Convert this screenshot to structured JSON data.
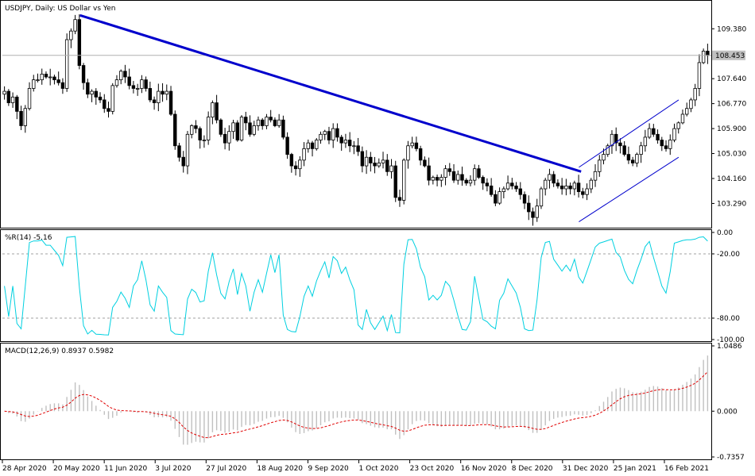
{
  "chart_data": [
    {
      "type": "candlestick",
      "title": "USDJPY, Daily:  US Dollar vs Yen",
      "yticks": [
        "109.380",
        "107.640",
        "106.770",
        "105.900",
        "105.030",
        "104.160",
        "103.290"
      ],
      "ylim": [
        102.5,
        110.3
      ],
      "current_price": 108.453,
      "current_price_label": "108.453",
      "x_labels": [
        "28 Apr 2020",
        "20 May 2020",
        "11 Jun 2020",
        "3 Jul 2020",
        "27 Jul 2020",
        "18 Aug 2020",
        "9 Sep 2020",
        "1 Oct 2020",
        "23 Oct 2020",
        "16 Nov 2020",
        "8 Dec 2020",
        "31 Dec 2020",
        "25 Jan 2021",
        "16 Feb 2021"
      ],
      "close_path": [
        107.2,
        106.8,
        107.0,
        106.5,
        106.0,
        106.6,
        107.3,
        107.6,
        107.6,
        107.8,
        107.7,
        107.7,
        107.6,
        107.5,
        107.3,
        109.0,
        109.3,
        109.7,
        108.1,
        107.5,
        107.1,
        107.2,
        107.0,
        106.9,
        106.6,
        106.5,
        107.4,
        107.6,
        107.9,
        107.7,
        107.4,
        107.3,
        107.3,
        107.6,
        107.3,
        106.9,
        106.8,
        107.2,
        107.1,
        107.2,
        106.4,
        105.3,
        104.9,
        104.6,
        105.7,
        106.0,
        105.9,
        105.5,
        105.5,
        106.3,
        106.8,
        106.2,
        105.7,
        105.4,
        105.8,
        106.1,
        105.5,
        106.3,
        106.1,
        105.7,
        106.0,
        106.2,
        106.0,
        106.3,
        106.2,
        106.0,
        106.2,
        105.6,
        105.0,
        104.6,
        104.5,
        104.8,
        105.2,
        105.4,
        105.2,
        105.5,
        105.7,
        105.8,
        105.5,
        105.9,
        105.6,
        105.4,
        105.5,
        105.3,
        105.3,
        105.1,
        104.6,
        104.9,
        104.7,
        104.6,
        104.7,
        104.8,
        104.4,
        104.6,
        103.5,
        103.4,
        104.8,
        105.3,
        105.4,
        105.2,
        104.8,
        104.6,
        104.1,
        104.2,
        104.1,
        104.2,
        104.5,
        104.4,
        104.1,
        104.3,
        104.1,
        104.0,
        104.1,
        104.5,
        104.2,
        104.0,
        103.9,
        103.6,
        103.3,
        103.7,
        103.8,
        104.0,
        103.9,
        103.8,
        103.6,
        103.3,
        103.0,
        102.8,
        103.2,
        103.8,
        104.1,
        104.3,
        104.0,
        103.9,
        103.8,
        103.9,
        103.8,
        104.0,
        103.7,
        103.6,
        103.8,
        104.1,
        104.4,
        104.8,
        105.0,
        105.3,
        105.7,
        105.4,
        105.3,
        105.0,
        104.8,
        104.7,
        105.0,
        105.3,
        105.6,
        105.9,
        105.7,
        105.5,
        105.3,
        105.2,
        105.5,
        105.9,
        106.1,
        106.4,
        106.6,
        106.9,
        107.3,
        108.2,
        108.6,
        108.45
      ],
      "trendlines": [
        {
          "from": [
            "2020-05-25",
            109.85
          ],
          "to": [
            "2021-01-06",
            104.4
          ],
          "color": "#0000cc"
        },
        {
          "from": [
            "2021-01-05",
            102.65
          ],
          "to": [
            "2021-02-19",
            104.9
          ],
          "color": "#0000cc"
        },
        {
          "from": [
            "2021-01-05",
            104.55
          ],
          "to": [
            "2021-02-19",
            106.9
          ],
          "color": "#0000cc"
        }
      ],
      "colors": {
        "bull": "#ffffff",
        "bear": "#000000",
        "wick": "#000000",
        "trend": "#0000cc"
      }
    },
    {
      "type": "line",
      "name_label": "%R(14) -5.16",
      "yticks": [
        "0.00",
        "-20.00",
        "-80.00",
        "-100.00"
      ],
      "ylim": [
        -100,
        0
      ],
      "levels": [
        -20,
        -80
      ],
      "color": "#00d0e0"
    },
    {
      "type": "histogram+line",
      "name_label": "MACD(12,26,9) 0.8937 0.5982",
      "yticks": [
        "1.0486",
        "0.000",
        "-0.7357"
      ],
      "ylim": [
        -0.7357,
        1.0486
      ],
      "macd_last": 0.8937,
      "signal_last": 0.5982,
      "colors": {
        "hist": "#c0c0c0",
        "signal": "#e00000"
      }
    }
  ]
}
